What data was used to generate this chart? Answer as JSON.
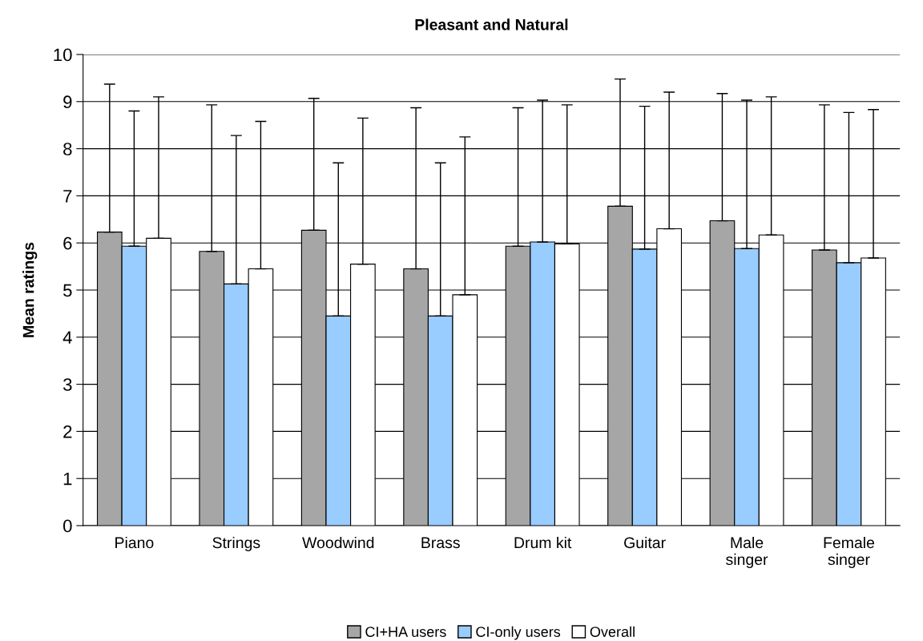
{
  "chart_data": {
    "type": "bar",
    "title": "Pleasant and Natural",
    "ylabel": "Mean ratings",
    "categories": [
      "Piano",
      "Strings",
      "Woodwind",
      "Brass",
      "Drum kit",
      "Guitar",
      "Male\nsinger",
      "Female\nsinger"
    ],
    "series": [
      {
        "name": "CI+HA users",
        "color": "#a6a6a6",
        "values": [
          6.23,
          5.82,
          6.27,
          5.45,
          5.93,
          6.78,
          6.47,
          5.85
        ],
        "errors": [
          [
            6.23,
            9.37
          ],
          [
            5.82,
            8.93
          ],
          [
            6.27,
            9.07
          ],
          [
            5.45,
            8.87
          ],
          [
            5.93,
            8.87
          ],
          [
            6.78,
            9.48
          ],
          [
            6.47,
            9.17
          ],
          [
            5.85,
            8.93
          ]
        ]
      },
      {
        "name": "CI-only users",
        "color": "#99ccff",
        "values": [
          5.93,
          5.13,
          4.45,
          4.45,
          6.02,
          5.87,
          5.88,
          5.58
        ],
        "errors": [
          [
            5.93,
            8.8
          ],
          [
            5.13,
            8.28
          ],
          [
            4.45,
            7.7
          ],
          [
            4.45,
            7.7
          ],
          [
            6.02,
            9.03
          ],
          [
            5.87,
            8.9
          ],
          [
            5.88,
            9.03
          ],
          [
            5.58,
            8.77
          ]
        ]
      },
      {
        "name": "Overall",
        "color": "#ffffff",
        "values": [
          6.1,
          5.45,
          5.55,
          4.9,
          5.98,
          6.3,
          6.17,
          5.68
        ],
        "errors": [
          [
            6.1,
            9.1
          ],
          [
            5.45,
            8.58
          ],
          [
            5.55,
            8.65
          ],
          [
            4.9,
            8.25
          ],
          [
            5.98,
            8.93
          ],
          [
            6.3,
            9.2
          ],
          [
            6.17,
            9.1
          ],
          [
            5.68,
            8.83
          ]
        ]
      }
    ],
    "ylim": [
      0,
      10
    ],
    "yticks": [
      0,
      1,
      2,
      3,
      4,
      5,
      6,
      7,
      8,
      9,
      10
    ],
    "grid": "y",
    "legend": "bottom"
  }
}
